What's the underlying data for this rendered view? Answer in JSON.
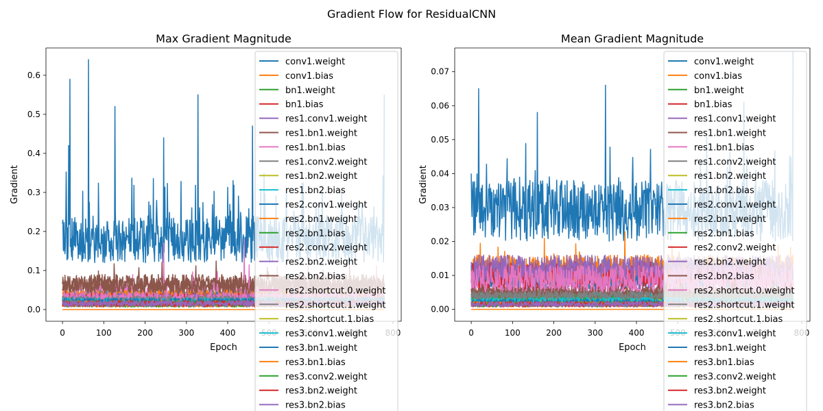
{
  "figure": {
    "suptitle": "Gradient Flow for ResidualCNN"
  },
  "legend_entries": [
    {
      "name": "conv1.weight",
      "color": "#1f77b4"
    },
    {
      "name": "conv1.bias",
      "color": "#ff7f0e"
    },
    {
      "name": "bn1.weight",
      "color": "#2ca02c"
    },
    {
      "name": "bn1.bias",
      "color": "#d62728"
    },
    {
      "name": "res1.conv1.weight",
      "color": "#9467bd"
    },
    {
      "name": "res1.bn1.weight",
      "color": "#8c564b"
    },
    {
      "name": "res1.bn1.bias",
      "color": "#e377c2"
    },
    {
      "name": "res1.conv2.weight",
      "color": "#7f7f7f"
    },
    {
      "name": "res1.bn2.weight",
      "color": "#bcbd22"
    },
    {
      "name": "res1.bn2.bias",
      "color": "#17becf"
    },
    {
      "name": "res2.conv1.weight",
      "color": "#1f77b4"
    },
    {
      "name": "res2.bn1.weight",
      "color": "#ff7f0e"
    },
    {
      "name": "res2.bn1.bias",
      "color": "#2ca02c"
    },
    {
      "name": "res2.conv2.weight",
      "color": "#d62728"
    },
    {
      "name": "res2.bn2.weight",
      "color": "#9467bd"
    },
    {
      "name": "res2.bn2.bias",
      "color": "#8c564b"
    },
    {
      "name": "res2.shortcut.0.weight",
      "color": "#e377c2"
    },
    {
      "name": "res2.shortcut.1.weight",
      "color": "#7f7f7f"
    },
    {
      "name": "res2.shortcut.1.bias",
      "color": "#bcbd22"
    },
    {
      "name": "res3.conv1.weight",
      "color": "#17becf"
    },
    {
      "name": "res3.bn1.weight",
      "color": "#1f77b4"
    },
    {
      "name": "res3.bn1.bias",
      "color": "#ff7f0e"
    },
    {
      "name": "res3.conv2.weight",
      "color": "#2ca02c"
    },
    {
      "name": "res3.bn2.weight",
      "color": "#d62728"
    },
    {
      "name": "res3.bn2.bias",
      "color": "#9467bd"
    }
  ],
  "chart_data": [
    {
      "type": "line",
      "title": "Max Gradient Magnitude",
      "xlabel": "Epoch",
      "ylabel": "Gradient",
      "xlim": [
        -40,
        820
      ],
      "ylim": [
        -0.03,
        0.67
      ],
      "xticks": [
        0,
        100,
        200,
        300,
        400,
        500,
        600,
        700,
        800
      ],
      "xtick_labels": [
        "0",
        "100",
        "200",
        "300",
        "400",
        "500",
        "600",
        "700",
        "800"
      ],
      "yticks": [
        0,
        0.1,
        0.2,
        0.3,
        0.4,
        0.5,
        0.6
      ],
      "ytick_labels": [
        "0.0",
        "0.1",
        "0.2",
        "0.3",
        "0.4",
        "0.5",
        "0.6"
      ],
      "grid": false,
      "legend_location": "upper right",
      "n_epochs": 780,
      "series": [
        {
          "name": "conv1.weight",
          "color": "#1f77b4",
          "base": 0.18,
          "noise": 0.06,
          "spike_prob": 0.1,
          "spike": 0.15,
          "peaks": [
            [
              0,
              0.22
            ],
            [
              15,
              0.42
            ],
            [
              18,
              0.59
            ],
            [
              63,
              0.64
            ],
            [
              127,
              0.52
            ],
            [
              245,
              0.44
            ],
            [
              328,
              0.55
            ],
            [
              460,
              0.47
            ],
            [
              780,
              0.55
            ]
          ]
        },
        {
          "name": "conv1.bias",
          "color": "#ff7f0e",
          "base": 0.0,
          "noise": 0.0
        },
        {
          "name": "bn1.weight",
          "color": "#2ca02c",
          "base": 0.012,
          "noise": 0.006
        },
        {
          "name": "bn1.bias",
          "color": "#d62728",
          "base": 0.02,
          "noise": 0.008
        },
        {
          "name": "res1.conv1.weight",
          "color": "#9467bd",
          "base": 0.03,
          "noise": 0.015
        },
        {
          "name": "res1.bn1.weight",
          "color": "#8c564b",
          "base": 0.065,
          "noise": 0.025,
          "spike_prob": 0.03,
          "spike": 0.04
        },
        {
          "name": "res1.bn1.bias",
          "color": "#e377c2",
          "base": 0.04,
          "noise": 0.02,
          "spike_prob": 0.03,
          "spike": 0.07,
          "peaks": [
            [
              245,
              0.17
            ],
            [
              440,
              0.18
            ]
          ]
        },
        {
          "name": "res1.conv2.weight",
          "color": "#7f7f7f",
          "base": 0.035,
          "noise": 0.015
        },
        {
          "name": "res1.bn2.weight",
          "color": "#bcbd22",
          "base": 0.02,
          "noise": 0.01
        },
        {
          "name": "res1.bn2.bias",
          "color": "#17becf",
          "base": 0.025,
          "noise": 0.01
        },
        {
          "name": "res2.conv1.weight",
          "color": "#1f77b4",
          "base": 0.03,
          "noise": 0.015
        },
        {
          "name": "res2.bn1.weight",
          "color": "#ff7f0e",
          "base": 0.035,
          "noise": 0.015
        },
        {
          "name": "res2.bn1.bias",
          "color": "#2ca02c",
          "base": 0.015,
          "noise": 0.008
        },
        {
          "name": "res2.conv2.weight",
          "color": "#d62728",
          "base": 0.03,
          "noise": 0.012
        },
        {
          "name": "res2.bn2.weight",
          "color": "#9467bd",
          "base": 0.03,
          "noise": 0.012
        },
        {
          "name": "res2.bn2.bias",
          "color": "#8c564b",
          "base": 0.06,
          "noise": 0.02
        },
        {
          "name": "res2.shortcut.0.weight",
          "color": "#e377c2",
          "base": 0.03,
          "noise": 0.015
        },
        {
          "name": "res2.shortcut.1.weight",
          "color": "#7f7f7f",
          "base": 0.025,
          "noise": 0.01
        },
        {
          "name": "res2.shortcut.1.bias",
          "color": "#bcbd22",
          "base": 0.015,
          "noise": 0.008
        },
        {
          "name": "res3.conv1.weight",
          "color": "#17becf",
          "base": 0.02,
          "noise": 0.01
        },
        {
          "name": "res3.bn1.weight",
          "color": "#1f77b4",
          "base": 0.02,
          "noise": 0.01
        },
        {
          "name": "res3.bn1.bias",
          "color": "#ff7f0e",
          "base": 0.015,
          "noise": 0.008
        },
        {
          "name": "res3.conv2.weight",
          "color": "#2ca02c",
          "base": 0.015,
          "noise": 0.008
        },
        {
          "name": "res3.bn2.weight",
          "color": "#d62728",
          "base": 0.015,
          "noise": 0.008
        },
        {
          "name": "res3.bn2.bias",
          "color": "#9467bd",
          "base": 0.015,
          "noise": 0.008
        }
      ]
    },
    {
      "type": "line",
      "title": "Mean Gradient Magnitude",
      "xlabel": "Epoch",
      "ylabel": "Gradient",
      "xlim": [
        -40,
        820
      ],
      "ylim": [
        -0.0035,
        0.077
      ],
      "xticks": [
        0,
        100,
        200,
        300,
        400,
        500,
        600,
        700,
        800
      ],
      "xtick_labels": [
        "0",
        "100",
        "200",
        "300",
        "400",
        "500",
        "600",
        "700",
        "800"
      ],
      "yticks": [
        0,
        0.01,
        0.02,
        0.03,
        0.04,
        0.05,
        0.06,
        0.07
      ],
      "ytick_labels": [
        "0.00",
        "0.01",
        "0.02",
        "0.03",
        "0.04",
        "0.05",
        "0.06",
        "0.07"
      ],
      "grid": false,
      "legend_location": "upper right",
      "n_epochs": 780,
      "series": [
        {
          "name": "conv1.weight",
          "color": "#1f77b4",
          "base": 0.029,
          "noise": 0.009,
          "spike_prob": 0.08,
          "spike": 0.015,
          "peaks": [
            [
              0,
              0.04
            ],
            [
              18,
              0.065
            ],
            [
              160,
              0.058
            ],
            [
              325,
              0.066
            ],
            [
              660,
              0.061
            ],
            [
              780,
              0.076
            ]
          ]
        },
        {
          "name": "conv1.bias",
          "color": "#ff7f0e",
          "base": 0.0,
          "noise": 0.0
        },
        {
          "name": "bn1.weight",
          "color": "#2ca02c",
          "base": 0.0015,
          "noise": 0.0008
        },
        {
          "name": "bn1.bias",
          "color": "#d62728",
          "base": 0.002,
          "noise": 0.001
        },
        {
          "name": "res1.conv1.weight",
          "color": "#9467bd",
          "base": 0.01,
          "noise": 0.004
        },
        {
          "name": "res1.bn1.weight",
          "color": "#8c564b",
          "base": 0.005,
          "noise": 0.002
        },
        {
          "name": "res1.bn1.bias",
          "color": "#e377c2",
          "base": 0.009,
          "noise": 0.004
        },
        {
          "name": "res1.conv2.weight",
          "color": "#7f7f7f",
          "base": 0.011,
          "noise": 0.004
        },
        {
          "name": "res1.bn2.weight",
          "color": "#bcbd22",
          "base": 0.003,
          "noise": 0.0015
        },
        {
          "name": "res1.bn2.bias",
          "color": "#17becf",
          "base": 0.0035,
          "noise": 0.0015
        },
        {
          "name": "res2.conv1.weight",
          "color": "#1f77b4",
          "base": 0.01,
          "noise": 0.004
        },
        {
          "name": "res2.bn1.weight",
          "color": "#ff7f0e",
          "base": 0.012,
          "noise": 0.004,
          "spike_prob": 0.03,
          "spike": 0.008
        },
        {
          "name": "res2.bn1.bias",
          "color": "#2ca02c",
          "base": 0.003,
          "noise": 0.0015
        },
        {
          "name": "res2.conv2.weight",
          "color": "#d62728",
          "base": 0.01,
          "noise": 0.004
        },
        {
          "name": "res2.bn2.weight",
          "color": "#9467bd",
          "base": 0.012,
          "noise": 0.004
        },
        {
          "name": "res2.bn2.bias",
          "color": "#8c564b",
          "base": 0.005,
          "noise": 0.002
        },
        {
          "name": "res2.shortcut.0.weight",
          "color": "#e377c2",
          "base": 0.009,
          "noise": 0.004
        },
        {
          "name": "res2.shortcut.1.weight",
          "color": "#7f7f7f",
          "base": 0.004,
          "noise": 0.0015
        },
        {
          "name": "res2.shortcut.1.bias",
          "color": "#bcbd22",
          "base": 0.002,
          "noise": 0.001
        },
        {
          "name": "res3.conv1.weight",
          "color": "#17becf",
          "base": 0.0025,
          "noise": 0.001
        },
        {
          "name": "res3.bn1.weight",
          "color": "#1f77b4",
          "base": 0.002,
          "noise": 0.001
        },
        {
          "name": "res3.bn1.bias",
          "color": "#ff7f0e",
          "base": 0.0015,
          "noise": 0.0008
        },
        {
          "name": "res3.conv2.weight",
          "color": "#2ca02c",
          "base": 0.0015,
          "noise": 0.0008
        },
        {
          "name": "res3.bn2.weight",
          "color": "#d62728",
          "base": 0.0015,
          "noise": 0.0008
        },
        {
          "name": "res3.bn2.bias",
          "color": "#9467bd",
          "base": 0.0015,
          "noise": 0.0008
        }
      ]
    }
  ]
}
